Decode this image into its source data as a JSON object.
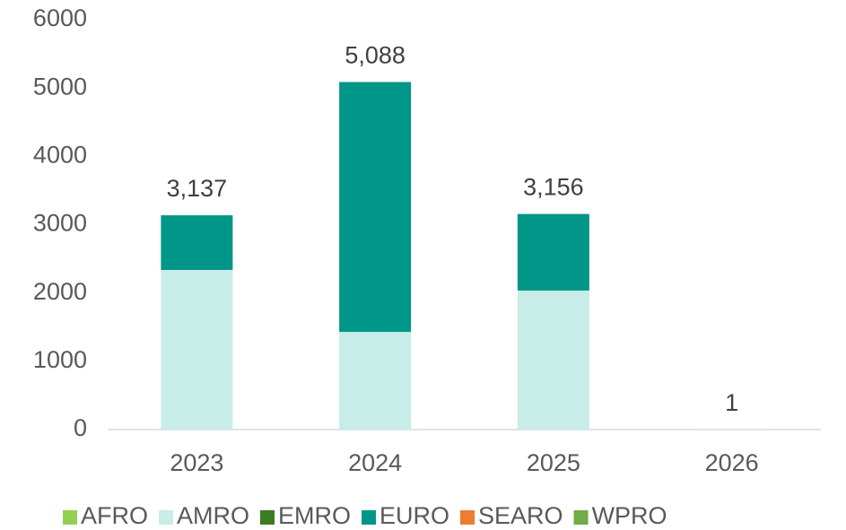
{
  "chart_data": {
    "type": "stacked_bar",
    "categories": [
      "2023",
      "2024",
      "2025",
      "2026"
    ],
    "series": [
      {
        "name": "AFRO",
        "color": "#92d050",
        "values": [
          0,
          0,
          0,
          0
        ]
      },
      {
        "name": "AMRO",
        "color": "#c8ece8",
        "values": [
          2337,
          1430,
          2035,
          1
        ]
      },
      {
        "name": "EMRO",
        "color": "#3a7d22",
        "values": [
          0,
          0,
          0,
          0
        ]
      },
      {
        "name": "EURO",
        "color": "#009688",
        "values": [
          800,
          3658,
          1121,
          0
        ]
      },
      {
        "name": "SEARO",
        "color": "#ed7d31",
        "values": [
          0,
          0,
          0,
          0
        ]
      },
      {
        "name": "WPRO",
        "color": "#70ad47",
        "values": [
          0,
          0,
          0,
          0
        ]
      }
    ],
    "totals": [
      3137,
      5088,
      3156,
      1
    ],
    "total_labels": [
      "3,137",
      "5,088",
      "3,156",
      "1"
    ],
    "ylim": [
      0,
      6000
    ],
    "yticks": [
      0,
      1000,
      2000,
      3000,
      4000,
      5000,
      6000
    ],
    "legend": "bottom"
  }
}
